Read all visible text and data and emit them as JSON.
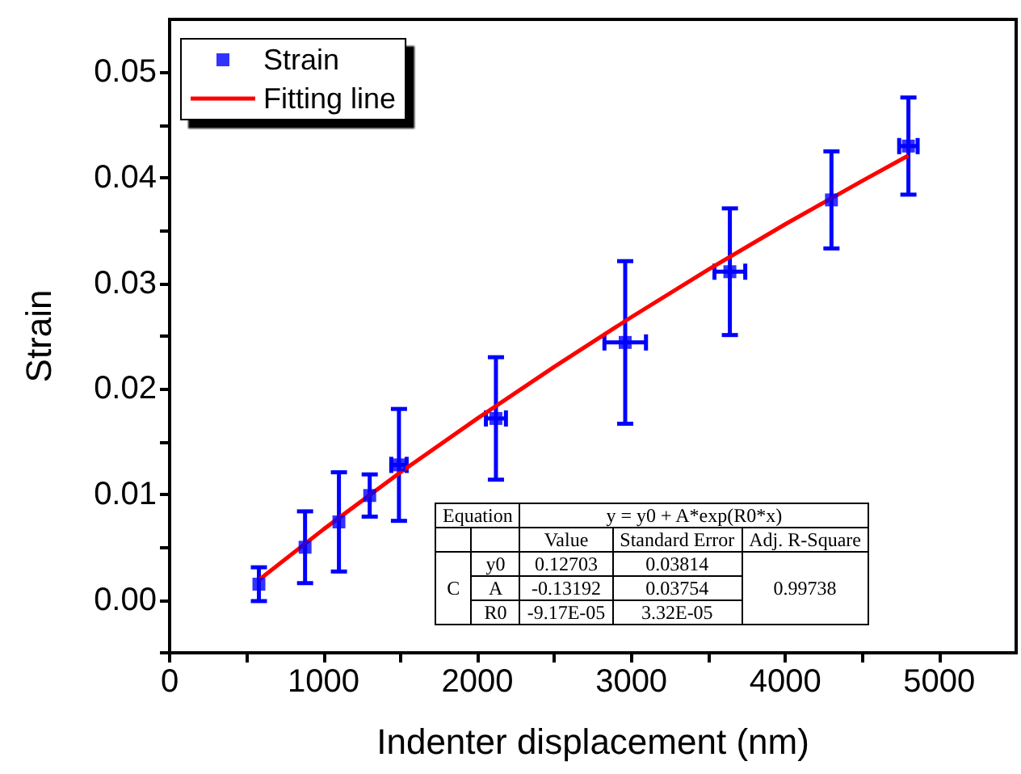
{
  "chart_data": {
    "type": "scatter",
    "xlabel": "Indenter displacement (nm)",
    "ylabel": "Strain",
    "xlim": [
      0,
      5500
    ],
    "xticks": [
      0,
      {
        "value": 500,
        "label": null
      },
      1000,
      {
        "value": 1500,
        "label": null
      },
      2000,
      {
        "value": 2500,
        "label": null
      },
      3000,
      {
        "value": 3500,
        "label": null
      },
      4000,
      {
        "value": 4500,
        "label": null
      },
      5000
    ],
    "ylim": [
      -0.005,
      0.055
    ],
    "yticks": [
      {
        "value": -0.005,
        "label": null
      },
      {
        "value": 0,
        "label": "0.00"
      },
      {
        "value": 0.005,
        "label": null
      },
      0.01,
      {
        "value": 0.015,
        "label": null
      },
      0.02,
      {
        "value": 0.025,
        "label": null
      },
      0.03,
      {
        "value": 0.035,
        "label": null
      },
      0.04,
      {
        "value": 0.045,
        "label": null
      },
      0.05
    ],
    "grid": false,
    "legend": "top left",
    "marker": "square",
    "series": [
      {
        "name": "Strain",
        "color": "#0000ff",
        "x": [
          580,
          880,
          1100,
          1300,
          1490,
          2120,
          2960,
          3640,
          4300,
          4800
        ],
        "values": [
          0.0015,
          0.005,
          0.0074,
          0.0099,
          0.0128,
          0.0172,
          0.0244,
          0.0311,
          0.0379,
          0.043
        ],
        "errors": [
          0.0016,
          0.0034,
          0.0047,
          0.002,
          0.0053,
          0.0058,
          0.0077,
          0.006,
          0.0046,
          0.0046
        ],
        "xerrors": [
          null,
          null,
          null,
          null,
          50,
          65,
          135,
          100,
          null,
          60
        ]
      },
      {
        "name": "Fitting line",
        "type": "line",
        "color": "#ff0000",
        "marker": "none",
        "line_style": "solid",
        "x": [
          580,
          1000,
          1500,
          2000,
          2500,
          3000,
          3500,
          4000,
          4500,
          4800
        ],
        "values": [
          0.0019,
          0.0067,
          0.0121,
          0.0172,
          0.0221,
          0.0268,
          0.0313,
          0.0356,
          0.0397,
          0.0421
        ]
      }
    ],
    "annotations": [
      "Equation",
      "y = y0 + A*exp(R0*x)",
      "Value",
      "Standard Error",
      "Adj. R-Square",
      "C",
      "y0",
      "0.12703",
      "0.03814",
      "0.99738",
      "A",
      "-0.13192",
      "0.03754",
      "R0",
      "-9.17E-05",
      "3.32E-05"
    ]
  }
}
